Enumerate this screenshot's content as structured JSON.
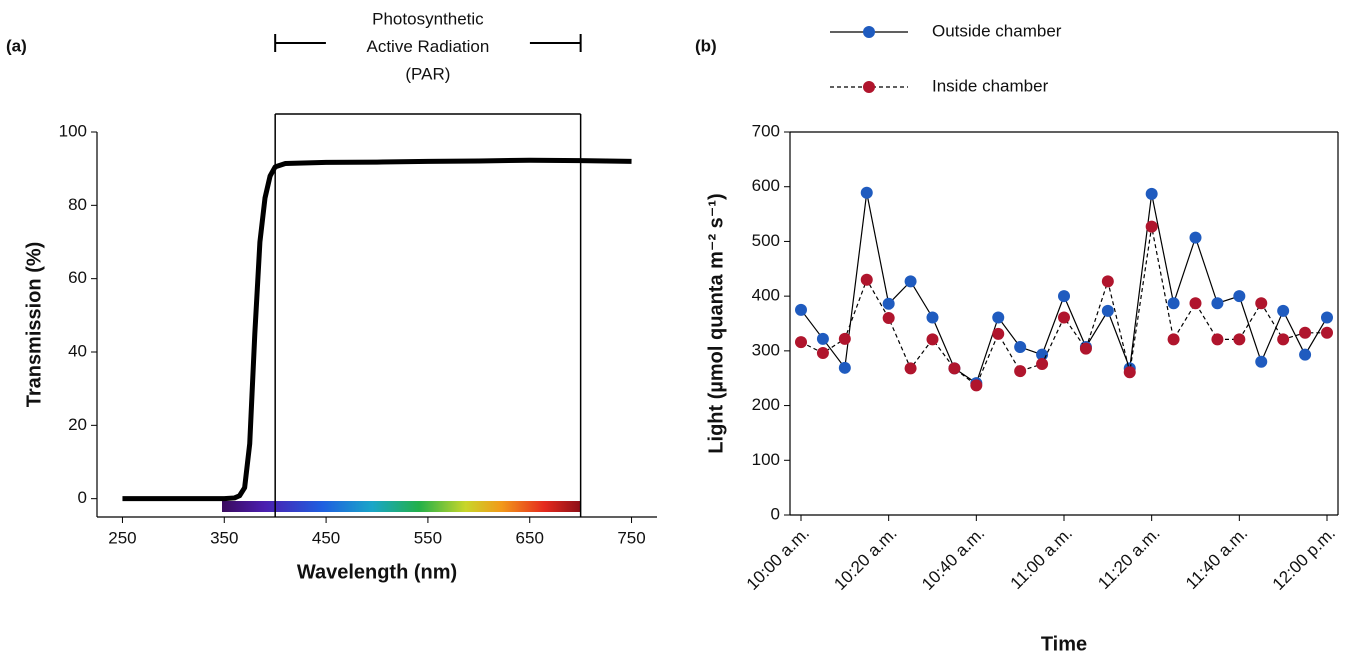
{
  "chart_data": [
    {
      "type": "line",
      "panel_label": "(a)",
      "xlabel": "Wavelength (nm)",
      "ylabel": "Transmission (%)",
      "x": [
        250,
        300,
        350,
        360,
        365,
        370,
        375,
        380,
        385,
        390,
        395,
        400,
        410,
        450,
        500,
        550,
        600,
        650,
        700,
        750
      ],
      "series": [
        {
          "color": "#000000",
          "values": [
            0,
            0,
            0,
            0.2,
            0.8,
            3,
            15,
            45,
            70,
            82,
            88,
            90.5,
            91.4,
            91.7,
            91.8,
            92,
            92.1,
            92.3,
            92.2,
            92
          ]
        }
      ],
      "xlim": [
        225,
        775
      ],
      "ylim": [
        -5,
        100
      ],
      "xticks": [
        250,
        350,
        450,
        550,
        650,
        750
      ],
      "yticks": [
        0,
        20,
        40,
        60,
        80,
        100
      ],
      "frame": "open",
      "annotation": {
        "lines": [
          "Photosynthetic",
          "Active Radiation",
          "(PAR)"
        ],
        "range": [
          400,
          700
        ]
      }
    },
    {
      "type": "line",
      "panel_label": "(b)",
      "xlabel": "Time",
      "ylabel": "Light (µmol quanta m⁻² s⁻¹)",
      "categories": [
        "10:00 a.m.",
        null,
        null,
        null,
        "10:20 a.m.",
        null,
        null,
        null,
        "10:40 a.m.",
        null,
        null,
        null,
        "11:00 a.m.",
        null,
        null,
        null,
        "11:20 a.m.",
        null,
        null,
        null,
        "11:40 a.m.",
        null,
        null,
        null,
        "12:00 p.m."
      ],
      "series": [
        {
          "name": "Outside chamber",
          "color": "#1f5bbf",
          "dash": false,
          "values": [
            375,
            322,
            269,
            589,
            386,
            427,
            361,
            268,
            241,
            361,
            307,
            293,
            400,
            307,
            373,
            268,
            587,
            387,
            507,
            387,
            400,
            280,
            373,
            293,
            361
          ]
        },
        {
          "name": "Inside chamber",
          "color": "#b0152d",
          "dash": true,
          "values": [
            316,
            296,
            322,
            430,
            360,
            268,
            321,
            268,
            237,
            331,
            263,
            276,
            361,
            304,
            427,
            261,
            527,
            321,
            387,
            321,
            321,
            387,
            321,
            333,
            333
          ]
        }
      ],
      "ylim": [
        0,
        700
      ],
      "yticks": [
        0,
        100,
        200,
        300,
        400,
        500,
        600,
        700
      ],
      "frame": "box",
      "legend": "top"
    }
  ]
}
